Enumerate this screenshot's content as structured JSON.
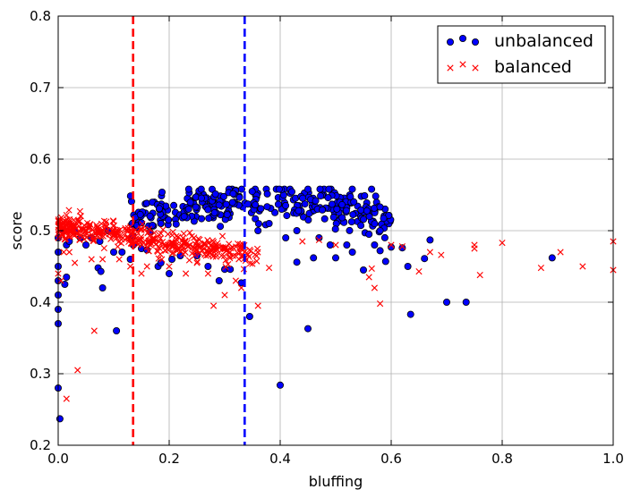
{
  "chart_data": {
    "type": "scatter",
    "xlabel": "bluffing",
    "ylabel": "score",
    "xlim": [
      0.0,
      1.0
    ],
    "ylim": [
      0.2,
      0.8
    ],
    "xticks": [
      "0.0",
      "0.2",
      "0.4",
      "0.6",
      "0.8",
      "1.0"
    ],
    "yticks": [
      "0.2",
      "0.3",
      "0.4",
      "0.5",
      "0.6",
      "0.7",
      "0.8"
    ],
    "grid": true,
    "legend_position": "top-right",
    "vlines": [
      {
        "x": 0.135,
        "color": "#ff0000",
        "style": "dashed"
      },
      {
        "x": 0.336,
        "color": "#0000ff",
        "style": "dashed"
      }
    ],
    "series": [
      {
        "name": "unbalanced",
        "marker": "circle",
        "color": "#0000ff",
        "cluster": {
          "x_range": [
            0.13,
            0.6
          ],
          "y_center": 0.525,
          "y_spread": 0.022,
          "count": 320
        },
        "points": [
          [
            0.0,
            0.49
          ],
          [
            0.0,
            0.47
          ],
          [
            0.0,
            0.45
          ],
          [
            0.0,
            0.43
          ],
          [
            0.0,
            0.41
          ],
          [
            0.0,
            0.39
          ],
          [
            0.0,
            0.37
          ],
          [
            0.0,
            0.28
          ],
          [
            0.003,
            0.237
          ],
          [
            0.01,
            0.5
          ],
          [
            0.015,
            0.48
          ],
          [
            0.02,
            0.485
          ],
          [
            0.012,
            0.425
          ],
          [
            0.015,
            0.435
          ],
          [
            0.03,
            0.5
          ],
          [
            0.04,
            0.49
          ],
          [
            0.05,
            0.48
          ],
          [
            0.06,
            0.49
          ],
          [
            0.075,
            0.485
          ],
          [
            0.072,
            0.448
          ],
          [
            0.077,
            0.443
          ],
          [
            0.08,
            0.42
          ],
          [
            0.09,
            0.5
          ],
          [
            0.1,
            0.47
          ],
          [
            0.105,
            0.36
          ],
          [
            0.115,
            0.47
          ],
          [
            0.13,
            0.46
          ],
          [
            0.15,
            0.475
          ],
          [
            0.16,
            0.473
          ],
          [
            0.18,
            0.45
          ],
          [
            0.185,
            0.455
          ],
          [
            0.2,
            0.44
          ],
          [
            0.205,
            0.46
          ],
          [
            0.22,
            0.465
          ],
          [
            0.25,
            0.465
          ],
          [
            0.27,
            0.45
          ],
          [
            0.29,
            0.43
          ],
          [
            0.3,
            0.446
          ],
          [
            0.31,
            0.446
          ],
          [
            0.33,
            0.427
          ],
          [
            0.345,
            0.38
          ],
          [
            0.4,
            0.284
          ],
          [
            0.45,
            0.363
          ],
          [
            0.43,
            0.456
          ],
          [
            0.46,
            0.462
          ],
          [
            0.49,
            0.48
          ],
          [
            0.5,
            0.462
          ],
          [
            0.53,
            0.47
          ],
          [
            0.55,
            0.445
          ],
          [
            0.57,
            0.48
          ],
          [
            0.58,
            0.472
          ],
          [
            0.59,
            0.457
          ],
          [
            0.6,
            0.477
          ],
          [
            0.62,
            0.476
          ],
          [
            0.63,
            0.45
          ],
          [
            0.635,
            0.383
          ],
          [
            0.66,
            0.461
          ],
          [
            0.67,
            0.487
          ],
          [
            0.7,
            0.4
          ],
          [
            0.735,
            0.4
          ],
          [
            0.89,
            0.462
          ],
          [
            0.36,
            0.5
          ],
          [
            0.38,
            0.51
          ],
          [
            0.41,
            0.49
          ],
          [
            0.43,
            0.5
          ],
          [
            0.47,
            0.49
          ],
          [
            0.52,
            0.48
          ],
          [
            0.56,
            0.495
          ],
          [
            0.58,
            0.5
          ]
        ]
      },
      {
        "name": "balanced",
        "marker": "x",
        "color": "#ff0000",
        "cluster": {
          "x_range": [
            0.0,
            0.36
          ],
          "y_start": 0.505,
          "y_end": 0.465,
          "y_spread": 0.012,
          "count": 420
        },
        "points": [
          [
            0.0,
            0.44
          ],
          [
            0.005,
            0.43
          ],
          [
            0.01,
            0.47
          ],
          [
            0.015,
            0.265
          ],
          [
            0.02,
            0.47
          ],
          [
            0.03,
            0.455
          ],
          [
            0.035,
            0.305
          ],
          [
            0.06,
            0.46
          ],
          [
            0.065,
            0.36
          ],
          [
            0.08,
            0.46
          ],
          [
            0.11,
            0.46
          ],
          [
            0.13,
            0.45
          ],
          [
            0.15,
            0.44
          ],
          [
            0.16,
            0.45
          ],
          [
            0.2,
            0.45
          ],
          [
            0.23,
            0.44
          ],
          [
            0.25,
            0.455
          ],
          [
            0.27,
            0.44
          ],
          [
            0.28,
            0.395
          ],
          [
            0.3,
            0.41
          ],
          [
            0.32,
            0.43
          ],
          [
            0.33,
            0.42
          ],
          [
            0.36,
            0.395
          ],
          [
            0.38,
            0.448
          ],
          [
            0.44,
            0.485
          ],
          [
            0.47,
            0.487
          ],
          [
            0.5,
            0.48
          ],
          [
            0.56,
            0.435
          ],
          [
            0.565,
            0.447
          ],
          [
            0.57,
            0.42
          ],
          [
            0.58,
            0.398
          ],
          [
            0.6,
            0.48
          ],
          [
            0.62,
            0.478
          ],
          [
            0.65,
            0.443
          ],
          [
            0.67,
            0.47
          ],
          [
            0.69,
            0.466
          ],
          [
            0.75,
            0.48
          ],
          [
            0.75,
            0.475
          ],
          [
            0.76,
            0.438
          ],
          [
            0.8,
            0.483
          ],
          [
            0.87,
            0.448
          ],
          [
            0.905,
            0.47
          ],
          [
            0.945,
            0.45
          ],
          [
            1.0,
            0.485
          ],
          [
            1.0,
            0.445
          ]
        ]
      }
    ]
  }
}
